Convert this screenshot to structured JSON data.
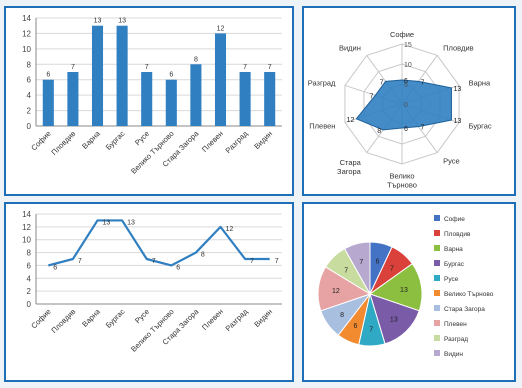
{
  "accent": "#2f7fc1",
  "categories": [
    "Софие",
    "Пловдив",
    "Варна",
    "Бургас",
    "Русе",
    "Велико Търново",
    "Стара Загора",
    "Плевен",
    "Разград",
    "Видин"
  ],
  "values": [
    6,
    7,
    13,
    13,
    7,
    6,
    8,
    12,
    7,
    7
  ],
  "chart_data": [
    {
      "type": "bar",
      "categories": [
        "Софие",
        "Пловдив",
        "Варна",
        "Бургас",
        "Русе",
        "Велико Търново",
        "Стара Загора",
        "Плевен",
        "Разград",
        "Видин"
      ],
      "values": [
        6,
        7,
        13,
        13,
        7,
        6,
        8,
        12,
        7,
        7
      ],
      "ylim": [
        0,
        14
      ],
      "yticks": [
        "0",
        "2",
        "4",
        "6",
        "8",
        "10",
        "12",
        "14"
      ],
      "grid": true
    },
    {
      "type": "radar",
      "categories": [
        "Софие",
        "Пловдив",
        "Варна",
        "Бургас",
        "Русе",
        "Велико Търново",
        "Стара Загора",
        "Плевен",
        "Разград",
        "Видин"
      ],
      "values": [
        6,
        7,
        13,
        13,
        7,
        6,
        8,
        12,
        7,
        7
      ],
      "rlim": [
        0,
        15
      ],
      "ticks": [
        "0",
        "5",
        "10",
        "15"
      ]
    },
    {
      "type": "line",
      "categories": [
        "Софие",
        "Пловдив",
        "Варна",
        "Бургас",
        "Русе",
        "Велико Търново",
        "Стара Загора",
        "Плевен",
        "Разград",
        "Видин"
      ],
      "values": [
        6,
        7,
        13,
        13,
        7,
        6,
        8,
        12,
        7,
        7
      ],
      "ylim": [
        0,
        14
      ],
      "yticks": [
        "0",
        "2",
        "4",
        "6",
        "8",
        "10",
        "12",
        "14"
      ],
      "grid": true
    },
    {
      "type": "pie",
      "categories": [
        "Софие",
        "Пловдив",
        "Варна",
        "Бургас",
        "Русе",
        "Велико Търново",
        "Стара Загора",
        "Плевен",
        "Разград",
        "Видин"
      ],
      "values": [
        6,
        7,
        13,
        13,
        7,
        6,
        8,
        12,
        7,
        7
      ],
      "colors": [
        "#4472c4",
        "#d9413a",
        "#8cbf3f",
        "#7a5ba8",
        "#2fa9c4",
        "#f28b30",
        "#a8bfe0",
        "#e7a3a3",
        "#c8dca0",
        "#b7a8cf"
      ],
      "legend": "right"
    }
  ]
}
